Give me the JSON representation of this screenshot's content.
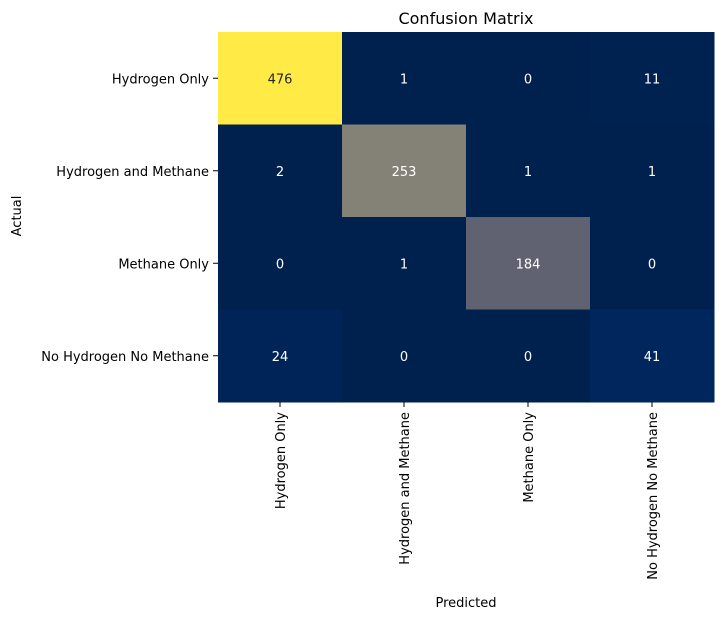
{
  "chart_data": {
    "type": "heatmap",
    "title": "Confusion Matrix",
    "xlabel": "Predicted",
    "ylabel": "Actual",
    "row_labels": [
      "Hydrogen Only",
      "Hydrogen and Methane",
      "Methane Only",
      "No Hydrogen No Methane"
    ],
    "col_labels": [
      "Hydrogen Only",
      "Hydrogen and Methane",
      "Methane Only",
      "No Hydrogen No Methane"
    ],
    "values": [
      [
        476,
        1,
        0,
        11
      ],
      [
        2,
        253,
        1,
        1
      ],
      [
        0,
        1,
        184,
        0
      ],
      [
        24,
        0,
        0,
        41
      ]
    ],
    "colormap": "cividis",
    "colorbar": false,
    "annotations": true
  }
}
